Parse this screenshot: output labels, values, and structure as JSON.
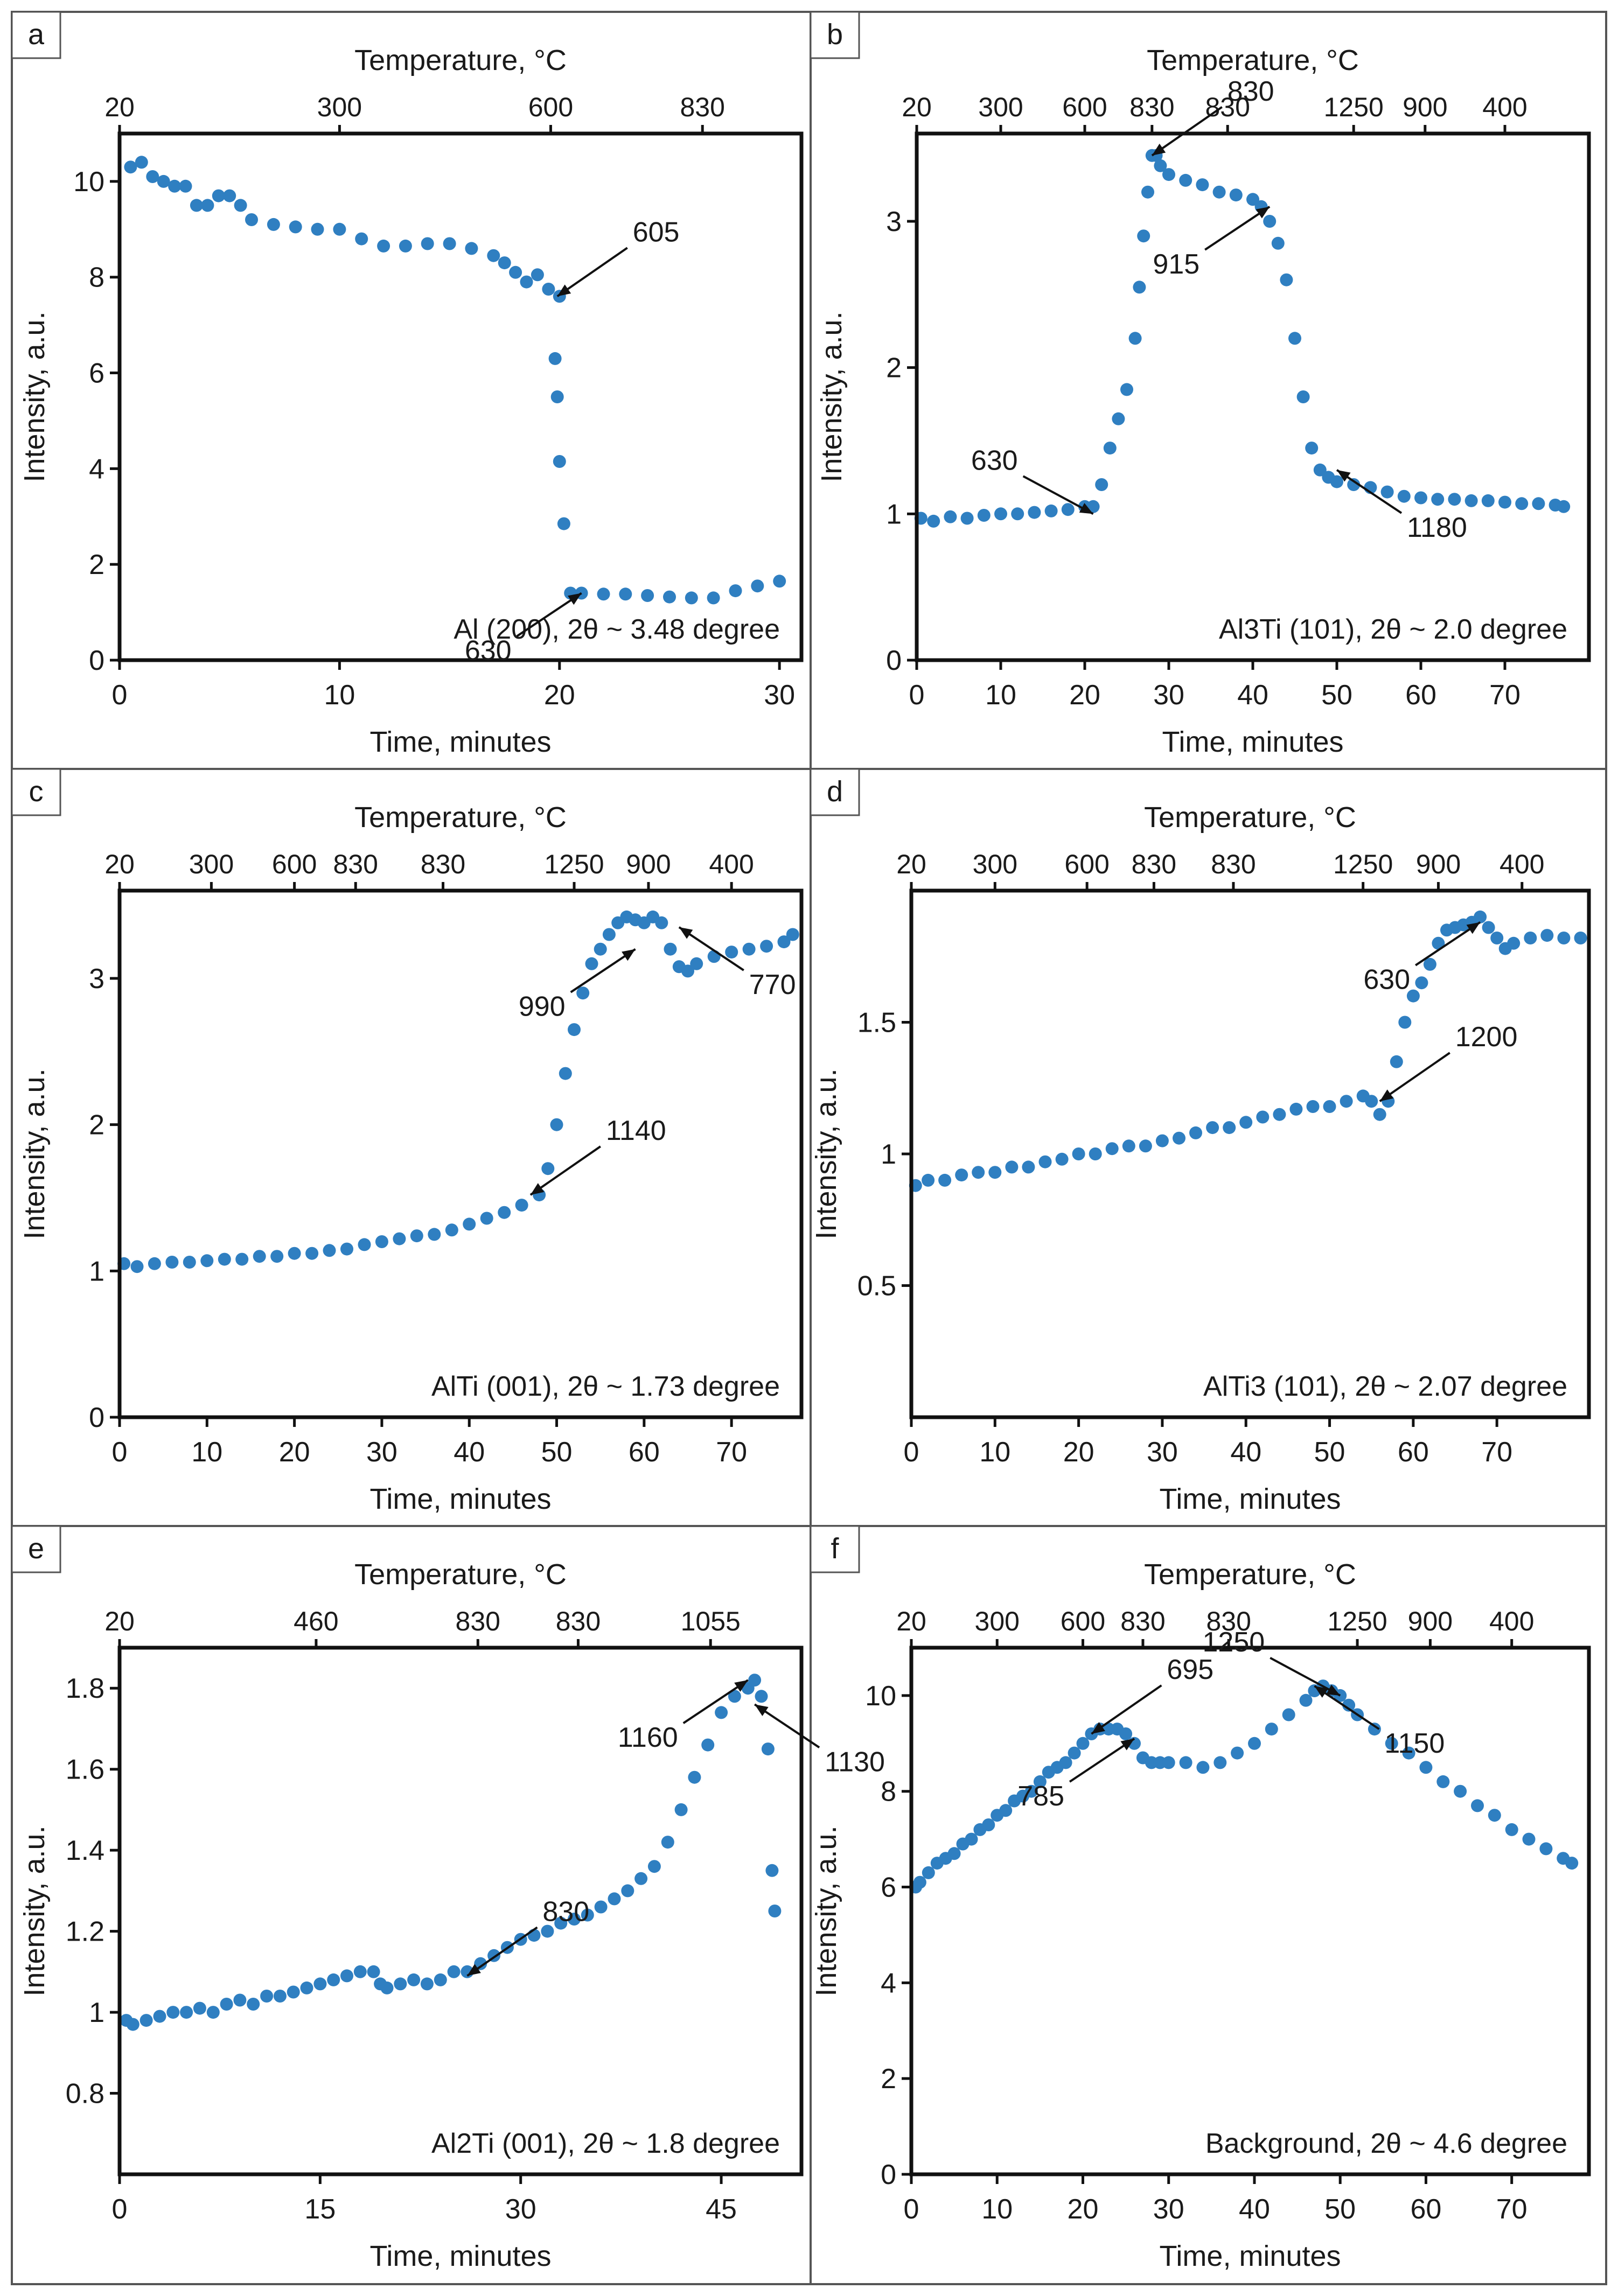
{
  "figure": {
    "top_axis_title": "Temperature, °C",
    "bottom_axis_title": "Time, minutes",
    "y_axis_title": "Intensity, a.u.",
    "colors": {
      "marker": "#2f7fc1",
      "frame": "#111111",
      "text": "#1a1a1a",
      "border": "#555555"
    }
  },
  "chart_data": [
    {
      "id": "a",
      "panel_label": "a",
      "type": "scatter",
      "title": "Al (200),  2θ ~ 3.48 degree",
      "xlabel": "Time, minutes",
      "ylabel": "Intensity, a.u.",
      "top_label": "Temperature, °C",
      "xlim": [
        0,
        31
      ],
      "ylim": [
        0,
        11
      ],
      "xticks": [
        0,
        10,
        20,
        30
      ],
      "xtick_labels": [
        "0",
        "10",
        "20",
        "30"
      ],
      "yticks": [
        0,
        2,
        4,
        6,
        8,
        10
      ],
      "ytick_labels": [
        "0",
        "2",
        "4",
        "6",
        "8",
        "10"
      ],
      "top_ticks": [
        0,
        10,
        19.6,
        26.5
      ],
      "top_tick_labels": [
        "20",
        "300",
        "600",
        "830"
      ],
      "series": [
        {
          "name": "Al (200)",
          "x": [
            0.5,
            1,
            1.5,
            2,
            2.5,
            3,
            3.5,
            4,
            4.5,
            5,
            5.5,
            6,
            7,
            8,
            9,
            10,
            11,
            12,
            13,
            14,
            15,
            16,
            17,
            17.5,
            18,
            18.5,
            19,
            19.5,
            20,
            19.8,
            19.9,
            20.0,
            20.2,
            20.5,
            21,
            22,
            23,
            24,
            25,
            26,
            27,
            28,
            29,
            30
          ],
          "y": [
            10.3,
            10.4,
            10.1,
            10.0,
            9.9,
            9.9,
            9.5,
            9.5,
            9.7,
            9.7,
            9.5,
            9.2,
            9.1,
            9.05,
            9.0,
            9.0,
            8.8,
            8.65,
            8.65,
            8.7,
            8.7,
            8.6,
            8.45,
            8.3,
            8.1,
            7.9,
            8.05,
            7.75,
            7.6,
            6.3,
            5.5,
            4.15,
            2.85,
            1.4,
            1.4,
            1.38,
            1.38,
            1.35,
            1.32,
            1.3,
            1.3,
            1.45,
            1.55,
            1.65
          ]
        }
      ],
      "annotations": [
        {
          "text": "605",
          "x": 19.9,
          "y": 7.6
        },
        {
          "text": "630",
          "x": 21,
          "y": 1.4
        }
      ]
    },
    {
      "id": "b",
      "panel_label": "b",
      "type": "scatter",
      "title": "Al3Ti (101),  2θ ~ 2.0 degree",
      "xlabel": "Time, minutes",
      "ylabel": "Intensity, a.u.",
      "top_label": "Temperature, °C",
      "xlim": [
        0,
        80
      ],
      "ylim": [
        0,
        3.6
      ],
      "xticks": [
        0,
        10,
        20,
        30,
        40,
        50,
        60,
        70
      ],
      "xtick_labels": [
        "0",
        "10",
        "20",
        "30",
        "40",
        "50",
        "60",
        "70"
      ],
      "yticks": [
        0,
        1,
        2,
        3
      ],
      "ytick_labels": [
        "0",
        "1",
        "2",
        "3"
      ],
      "top_ticks": [
        0,
        10,
        20,
        28,
        37,
        52,
        60.5,
        70
      ],
      "top_tick_labels": [
        "20",
        "300",
        "600",
        "830",
        "830",
        "1250",
        "900",
        "400"
      ],
      "series": [
        {
          "name": "Al3Ti (101)",
          "x": [
            0.5,
            2,
            4,
            6,
            8,
            10,
            12,
            14,
            16,
            18,
            20,
            21,
            22,
            23,
            24,
            25,
            26,
            26.5,
            27,
            27.5,
            28,
            28.5,
            29,
            30,
            32,
            34,
            36,
            38,
            40,
            41,
            42,
            43,
            44,
            45,
            46,
            47,
            48,
            49,
            50,
            52,
            54,
            56,
            58,
            60,
            62,
            64,
            66,
            68,
            70,
            72,
            74,
            76,
            77
          ],
          "y": [
            0.97,
            0.95,
            0.98,
            0.97,
            0.99,
            1.0,
            1.0,
            1.01,
            1.02,
            1.03,
            1.05,
            1.05,
            1.2,
            1.45,
            1.65,
            1.85,
            2.2,
            2.55,
            2.9,
            3.2,
            3.45,
            3.45,
            3.38,
            3.32,
            3.28,
            3.25,
            3.2,
            3.18,
            3.15,
            3.1,
            3.0,
            2.85,
            2.6,
            2.2,
            1.8,
            1.45,
            1.3,
            1.25,
            1.22,
            1.2,
            1.18,
            1.15,
            1.12,
            1.11,
            1.1,
            1.1,
            1.09,
            1.09,
            1.08,
            1.07,
            1.07,
            1.06,
            1.05
          ]
        }
      ],
      "annotations": [
        {
          "text": "830",
          "x": 28,
          "y": 3.45
        },
        {
          "text": "915",
          "x": 42,
          "y": 3.1
        },
        {
          "text": "1180",
          "x": 50,
          "y": 1.3
        },
        {
          "text": "630",
          "x": 21,
          "y": 1.0
        }
      ]
    },
    {
      "id": "c",
      "panel_label": "c",
      "type": "scatter",
      "title": "AlTi (001),  2θ ~ 1.73 degree",
      "xlabel": "Time, minutes",
      "ylabel": "Intensity, a.u.",
      "top_label": "Temperature, °C",
      "xlim": [
        0,
        78
      ],
      "ylim": [
        0,
        3.6
      ],
      "xticks": [
        0,
        10,
        20,
        30,
        40,
        50,
        60,
        70
      ],
      "xtick_labels": [
        "0",
        "10",
        "20",
        "30",
        "40",
        "50",
        "60",
        "70"
      ],
      "yticks": [
        0,
        1,
        2,
        3
      ],
      "ytick_labels": [
        "0",
        "1",
        "2",
        "3"
      ],
      "top_ticks": [
        0,
        10.5,
        20,
        27,
        37,
        52,
        60.5,
        70
      ],
      "top_tick_labels": [
        "20",
        "300",
        "600",
        "830",
        "830",
        "1250",
        "900",
        "400"
      ],
      "series": [
        {
          "name": "AlTi (001)",
          "x": [
            0.5,
            2,
            4,
            6,
            8,
            10,
            12,
            14,
            16,
            18,
            20,
            22,
            24,
            26,
            28,
            30,
            32,
            34,
            36,
            38,
            40,
            42,
            44,
            46,
            48,
            49,
            50,
            51,
            52,
            53,
            54,
            55,
            56,
            57,
            58,
            59,
            60,
            61,
            62,
            63,
            64,
            65,
            66,
            68,
            70,
            72,
            74,
            76,
            77
          ],
          "y": [
            1.05,
            1.03,
            1.05,
            1.06,
            1.06,
            1.07,
            1.08,
            1.08,
            1.1,
            1.1,
            1.12,
            1.12,
            1.14,
            1.15,
            1.18,
            1.2,
            1.22,
            1.24,
            1.25,
            1.28,
            1.32,
            1.36,
            1.4,
            1.45,
            1.52,
            1.7,
            2.0,
            2.35,
            2.65,
            2.9,
            3.1,
            3.2,
            3.3,
            3.38,
            3.42,
            3.4,
            3.38,
            3.42,
            3.38,
            3.2,
            3.08,
            3.05,
            3.1,
            3.15,
            3.18,
            3.2,
            3.22,
            3.25,
            3.3
          ]
        }
      ],
      "annotations": [
        {
          "text": "1140",
          "x": 47,
          "y": 1.52
        },
        {
          "text": "990",
          "x": 59,
          "y": 3.2
        },
        {
          "text": "770",
          "x": 64,
          "y": 3.35
        }
      ]
    },
    {
      "id": "d",
      "panel_label": "d",
      "type": "scatter",
      "title": "AlTi3 (101),  2θ ~ 2.07 degree",
      "xlabel": "Time, minutes",
      "ylabel": "Intensity, a.u.",
      "top_label": "Temperature, °C",
      "xlim": [
        0,
        81
      ],
      "ylim": [
        0,
        2.0
      ],
      "xticks": [
        0,
        10,
        20,
        30,
        40,
        50,
        60,
        70
      ],
      "xtick_labels": [
        "0",
        "10",
        "20",
        "30",
        "40",
        "50",
        "60",
        "70"
      ],
      "yticks": [
        0.5,
        1,
        1.5
      ],
      "ytick_labels": [
        "0.5",
        "1",
        "1.5"
      ],
      "top_ticks": [
        0,
        10,
        21,
        29,
        38.5,
        54,
        63,
        73
      ],
      "top_tick_labels": [
        "20",
        "300",
        "600",
        "830",
        "830",
        "1250",
        "900",
        "400"
      ],
      "series": [
        {
          "name": "AlTi3 (101)",
          "x": [
            0.5,
            2,
            4,
            6,
            8,
            10,
            12,
            14,
            16,
            18,
            20,
            22,
            24,
            26,
            28,
            30,
            32,
            34,
            36,
            38,
            40,
            42,
            44,
            46,
            48,
            50,
            52,
            54,
            55,
            56,
            57,
            58,
            59,
            60,
            61,
            62,
            63,
            64,
            65,
            66,
            67,
            68,
            69,
            70,
            71,
            72,
            74,
            76,
            78,
            80
          ],
          "y": [
            0.88,
            0.9,
            0.9,
            0.92,
            0.93,
            0.93,
            0.95,
            0.95,
            0.97,
            0.98,
            1.0,
            1.0,
            1.02,
            1.03,
            1.03,
            1.05,
            1.06,
            1.08,
            1.1,
            1.1,
            1.12,
            1.14,
            1.15,
            1.17,
            1.18,
            1.18,
            1.2,
            1.22,
            1.2,
            1.15,
            1.2,
            1.35,
            1.5,
            1.6,
            1.65,
            1.72,
            1.8,
            1.85,
            1.86,
            1.87,
            1.88,
            1.9,
            1.86,
            1.82,
            1.78,
            1.8,
            1.82,
            1.83,
            1.82,
            1.82
          ]
        }
      ],
      "annotations": [
        {
          "text": "1200",
          "x": 56,
          "y": 1.2
        },
        {
          "text": "630",
          "x": 68,
          "y": 1.88
        }
      ]
    },
    {
      "id": "e",
      "panel_label": "e",
      "type": "scatter",
      "title": "Al2Ti (001),  2θ ~ 1.8 degree",
      "xlabel": "Time, minutes",
      "ylabel": "Intensity, a.u.",
      "top_label": "Temperature, °C",
      "xlim": [
        0,
        51
      ],
      "ylim": [
        0.6,
        1.9
      ],
      "xticks": [
        0,
        15,
        30,
        45
      ],
      "xtick_labels": [
        "0",
        "15",
        "30",
        "45"
      ],
      "yticks": [
        0.8,
        1.0,
        1.2,
        1.4,
        1.6,
        1.8
      ],
      "ytick_labels": [
        "0.8",
        "1",
        "1.2",
        "1.4",
        "1.6",
        "1.8"
      ],
      "top_ticks": [
        0,
        14.7,
        26.8,
        34.3,
        44.2
      ],
      "top_tick_labels": [
        "20",
        "460",
        "830",
        "830",
        "1055"
      ],
      "series": [
        {
          "name": "Al2Ti (001)",
          "x": [
            0.5,
            1,
            2,
            3,
            4,
            5,
            6,
            7,
            8,
            9,
            10,
            11,
            12,
            13,
            14,
            15,
            16,
            17,
            18,
            19,
            19.5,
            20,
            21,
            22,
            23,
            24,
            25,
            26,
            27,
            28,
            29,
            30,
            31,
            32,
            33,
            34,
            35,
            36,
            37,
            38,
            39,
            40,
            41,
            42,
            43,
            44,
            45,
            46,
            47,
            47.5,
            48,
            48.5,
            48.8,
            49
          ],
          "y": [
            0.98,
            0.97,
            0.98,
            0.99,
            1.0,
            1.0,
            1.01,
            1.0,
            1.02,
            1.03,
            1.02,
            1.04,
            1.04,
            1.05,
            1.06,
            1.07,
            1.08,
            1.09,
            1.1,
            1.1,
            1.07,
            1.06,
            1.07,
            1.08,
            1.07,
            1.08,
            1.1,
            1.1,
            1.12,
            1.14,
            1.16,
            1.18,
            1.19,
            1.2,
            1.22,
            1.23,
            1.24,
            1.26,
            1.28,
            1.3,
            1.33,
            1.36,
            1.42,
            1.5,
            1.58,
            1.66,
            1.74,
            1.78,
            1.8,
            1.82,
            1.78,
            1.65,
            1.35,
            1.25
          ]
        }
      ],
      "annotations": [
        {
          "text": "830",
          "x": 26,
          "y": 1.09
        },
        {
          "text": "1160",
          "x": 47,
          "y": 1.82
        },
        {
          "text": "1130",
          "x": 47.5,
          "y": 1.76
        }
      ]
    },
    {
      "id": "f",
      "panel_label": "f",
      "type": "scatter",
      "title": "Background,  2θ ~ 4.6 degree",
      "xlabel": "Time, minutes",
      "ylabel": "Intensity, a.u.",
      "top_label": "Temperature, °C",
      "xlim": [
        0,
        79
      ],
      "ylim": [
        0,
        11
      ],
      "xticks": [
        0,
        10,
        20,
        30,
        40,
        50,
        60,
        70
      ],
      "xtick_labels": [
        "0",
        "10",
        "20",
        "30",
        "40",
        "50",
        "60",
        "70"
      ],
      "yticks": [
        0,
        2,
        4,
        6,
        8,
        10
      ],
      "ytick_labels": [
        "0",
        "2",
        "4",
        "6",
        "8",
        "10"
      ],
      "top_ticks": [
        0,
        10,
        20,
        27,
        37,
        52,
        60.5,
        70
      ],
      "top_tick_labels": [
        "20",
        "300",
        "600",
        "830",
        "830",
        "1250",
        "900",
        "400"
      ],
      "series": [
        {
          "name": "Background",
          "x": [
            0.5,
            1,
            2,
            3,
            4,
            5,
            6,
            7,
            8,
            9,
            10,
            11,
            12,
            13,
            14,
            15,
            16,
            17,
            18,
            19,
            20,
            21,
            22,
            23,
            24,
            25,
            26,
            27,
            28,
            29,
            30,
            32,
            34,
            36,
            38,
            40,
            42,
            44,
            46,
            47,
            48,
            49,
            50,
            51,
            52,
            54,
            56,
            58,
            60,
            62,
            64,
            66,
            68,
            70,
            72,
            74,
            76,
            77
          ],
          "y": [
            6.0,
            6.1,
            6.3,
            6.5,
            6.6,
            6.7,
            6.9,
            7.0,
            7.2,
            7.3,
            7.5,
            7.6,
            7.8,
            7.9,
            8.0,
            8.2,
            8.4,
            8.5,
            8.6,
            8.8,
            9.0,
            9.2,
            9.3,
            9.3,
            9.3,
            9.2,
            9.0,
            8.7,
            8.6,
            8.6,
            8.6,
            8.6,
            8.5,
            8.6,
            8.8,
            9.0,
            9.3,
            9.6,
            9.9,
            10.1,
            10.2,
            10.1,
            10.0,
            9.8,
            9.6,
            9.3,
            9.0,
            8.8,
            8.5,
            8.2,
            8.0,
            7.7,
            7.5,
            7.2,
            7.0,
            6.8,
            6.6,
            6.5
          ]
        }
      ],
      "annotations": [
        {
          "text": "695",
          "x": 21,
          "y": 9.2
        },
        {
          "text": "785",
          "x": 26,
          "y": 9.1
        },
        {
          "text": "1150",
          "x": 47,
          "y": 10.2
        },
        {
          "text": "1250",
          "x": 50,
          "y": 10.0
        }
      ]
    }
  ]
}
